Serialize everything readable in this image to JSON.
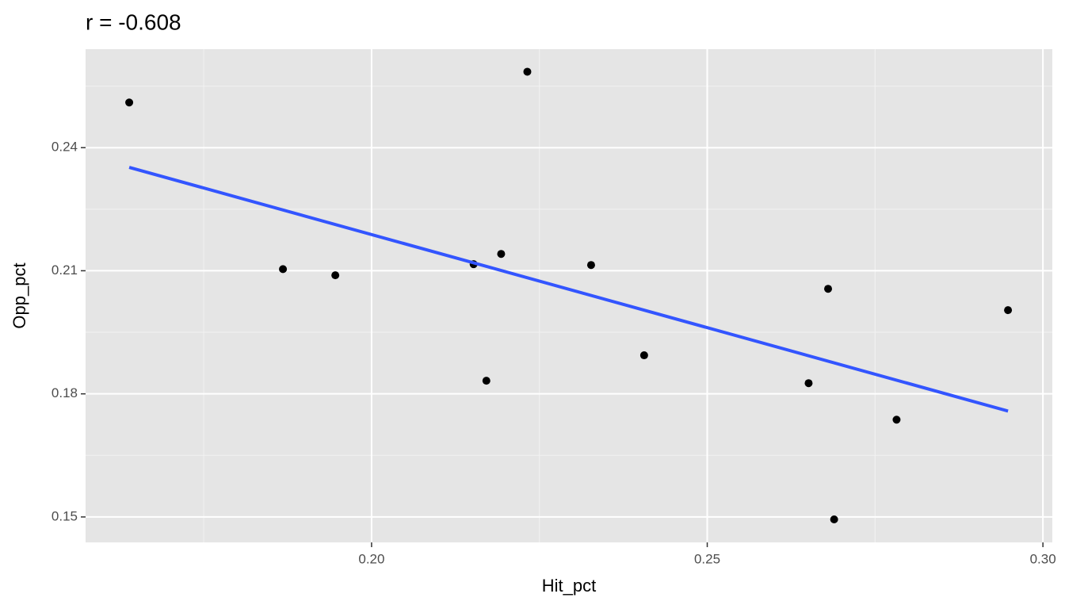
{
  "chart_data": {
    "type": "scatter",
    "title": "r = -0.608",
    "x_label": "Hit_pct",
    "y_label": "Opp_pct",
    "x": [
      0.1639,
      0.1868,
      0.1946,
      0.2152,
      0.2193,
      0.2171,
      0.2232,
      0.2327,
      0.2406,
      0.268,
      0.2651,
      0.2689,
      0.2782,
      0.2948
    ],
    "values": [
      0.251,
      0.2104,
      0.2089,
      0.2116,
      0.2141,
      0.1832,
      0.2585,
      0.2114,
      0.1894,
      0.2056,
      0.1826,
      0.1494,
      0.1737,
      0.2004
    ],
    "color": "#000000",
    "trend": {
      "x": [
        0.1639,
        0.2948
      ],
      "values": [
        0.2352,
        0.1758
      ],
      "color": "#3355ff"
    },
    "xlim": [
      0.1574,
      0.3014
    ],
    "ylim": [
      0.1438,
      0.264
    ],
    "xticks": [
      {
        "value": 0.2,
        "label": "0.20"
      },
      0.25,
      {
        "value": 0.3,
        "label": "0.30"
      }
    ],
    "yticks": [
      0.15,
      0.18,
      0.21,
      0.24
    ],
    "grid": true
  }
}
